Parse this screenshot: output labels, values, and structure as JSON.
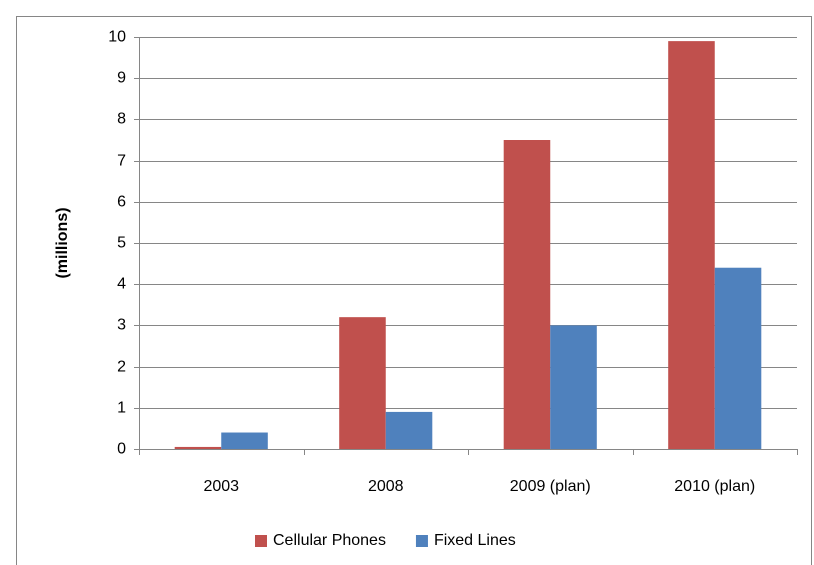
{
  "chart_data": {
    "type": "bar",
    "y_label": "(millions)",
    "categories": [
      "2003",
      "2008",
      "2009 (plan)",
      "2010 (plan)"
    ],
    "series": [
      {
        "name": "Cellular Phones",
        "color": "#c0504d",
        "values": [
          0.05,
          3.2,
          7.5,
          9.9
        ]
      },
      {
        "name": "Fixed Lines",
        "color": "#4f81bd",
        "values": [
          0.4,
          0.9,
          3.0,
          4.4
        ]
      }
    ],
    "ylim": [
      0,
      10
    ],
    "yticks": [
      0,
      1,
      2,
      3,
      4,
      5,
      6,
      7,
      8,
      9,
      10
    ],
    "grid": true,
    "legend": "bottom"
  }
}
